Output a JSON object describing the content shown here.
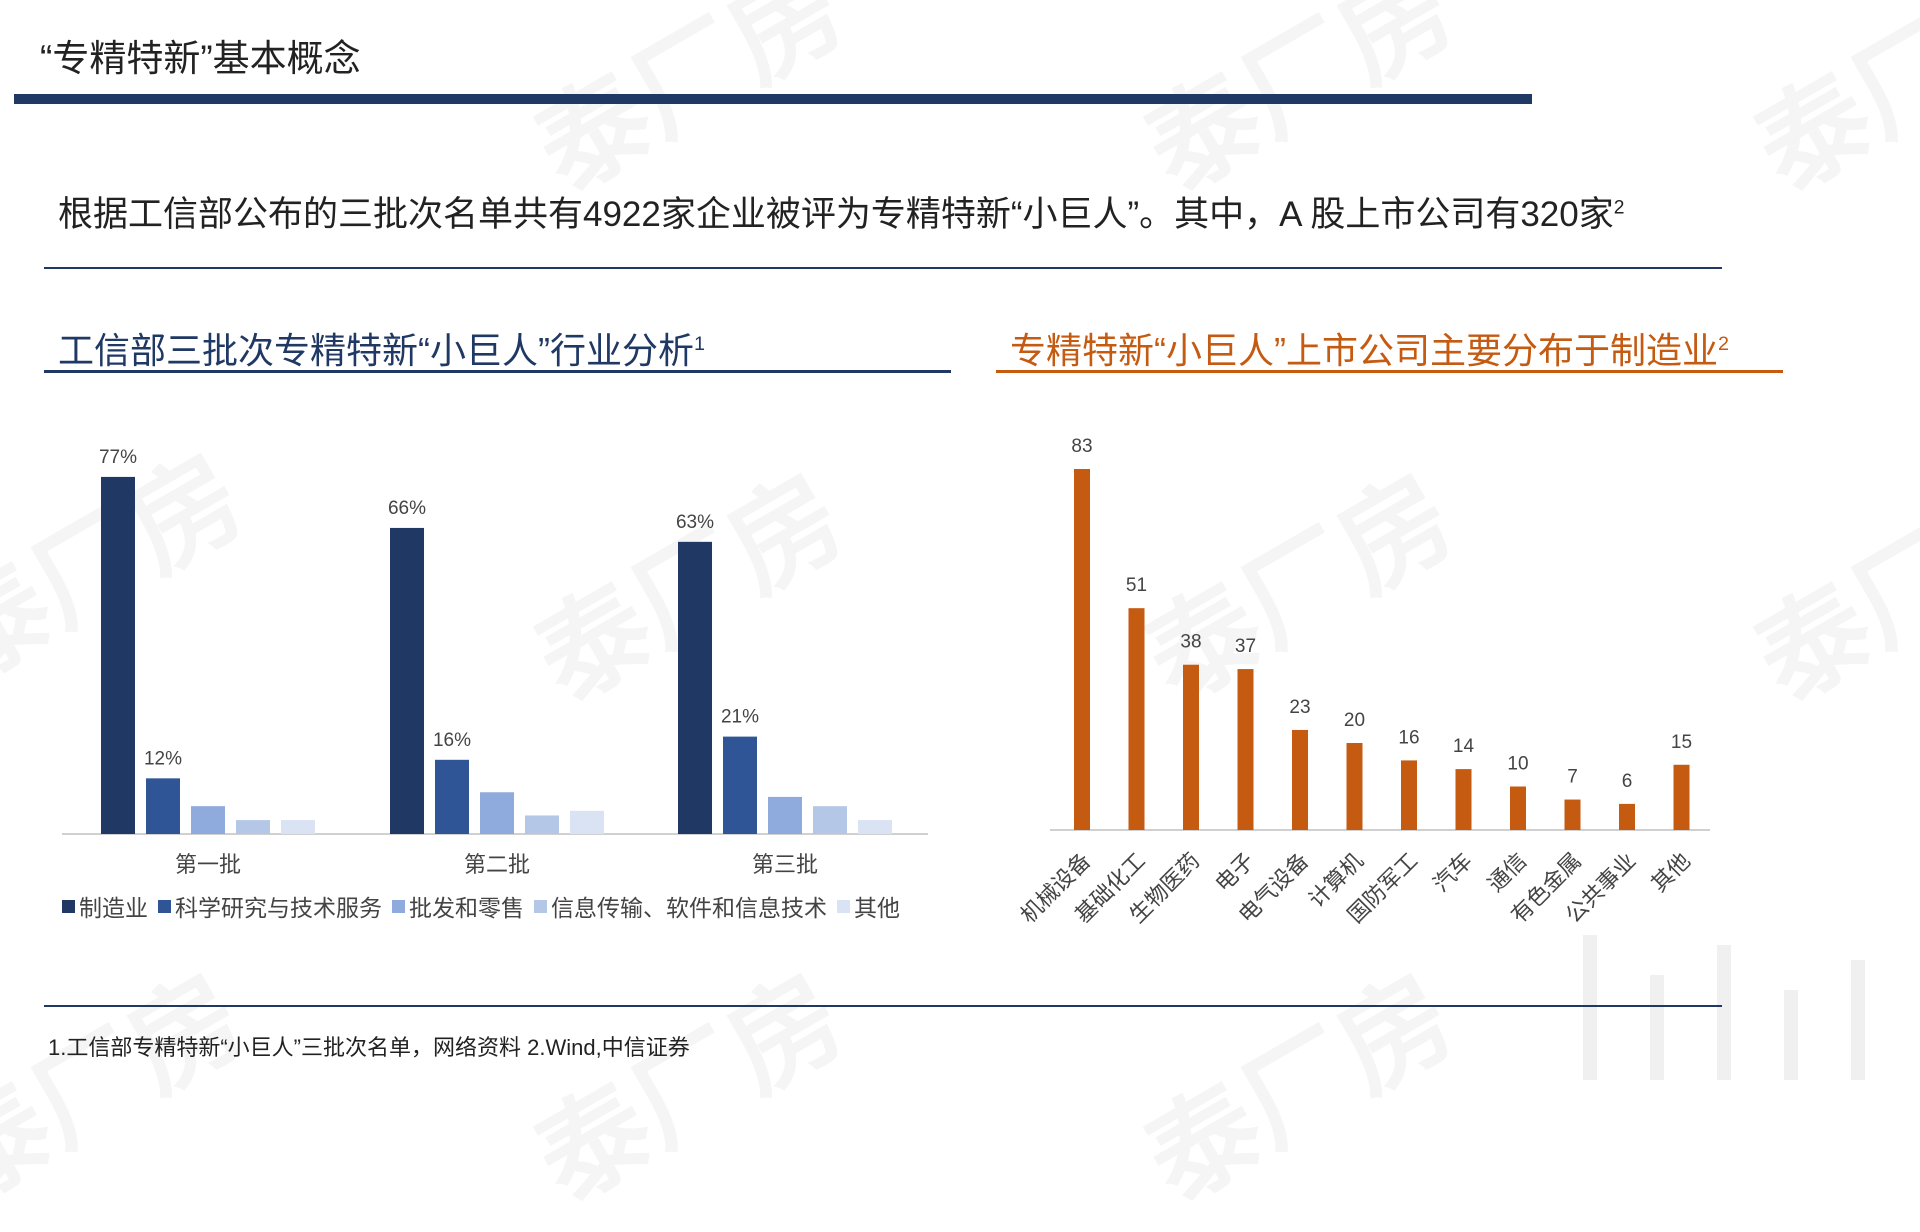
{
  "title": "“专精特新”基本概念",
  "intro": {
    "text": "根据工信部公布的三批次名单共有4922家企业被评为专精特新“小巨人”。其中，A 股上市公司有320家",
    "note": "2"
  },
  "left_heading": {
    "text": "工信部三批次专精特新“小巨人”行业分析",
    "note": "1"
  },
  "right_heading": {
    "text": "专精特新“小巨人”上市公司主要分布于制造业",
    "note": "2"
  },
  "footer": "1.工信部专精特新“小巨人”三批次名单，网络资料 2.Wind,中信证券",
  "watermark": "泰厂房",
  "chart_data": [
    {
      "type": "bar",
      "categories": [
        "第一批",
        "第二批",
        "第三批"
      ],
      "series": [
        {
          "name": "制造业",
          "values": [
            77,
            66,
            63
          ],
          "labels": [
            "77%",
            "66%",
            "63%"
          ],
          "color": "#1f3864"
        },
        {
          "name": "科学研究与技术服务",
          "values": [
            12,
            16,
            21
          ],
          "labels": [
            "12%",
            "16%",
            "21%"
          ],
          "color": "#2f5597"
        },
        {
          "name": "批发和零售",
          "values": [
            6,
            9,
            8
          ],
          "labels": [
            "",
            "",
            ""
          ],
          "color": "#8faadc"
        },
        {
          "name": "信息传输、软件和信息技术",
          "values": [
            3,
            4,
            6
          ],
          "labels": [
            "",
            "",
            ""
          ],
          "color": "#b4c7e7"
        },
        {
          "name": "其他",
          "values": [
            3,
            5,
            3
          ],
          "labels": [
            "",
            "",
            ""
          ],
          "color": "#dae3f3"
        }
      ],
      "ylim": [
        0,
        80
      ],
      "legend": "bottom"
    },
    {
      "type": "bar",
      "categories": [
        "机械设备",
        "基础化工",
        "生物医药",
        "电子",
        "电气设备",
        "计算机",
        "国防军工",
        "汽车",
        "通信",
        "有色金属",
        "公共事业",
        "其他"
      ],
      "values": [
        83,
        51,
        38,
        37,
        23,
        20,
        16,
        14,
        10,
        7,
        6,
        15
      ],
      "color": "#c55a11",
      "ylim": [
        0,
        85
      ]
    }
  ]
}
